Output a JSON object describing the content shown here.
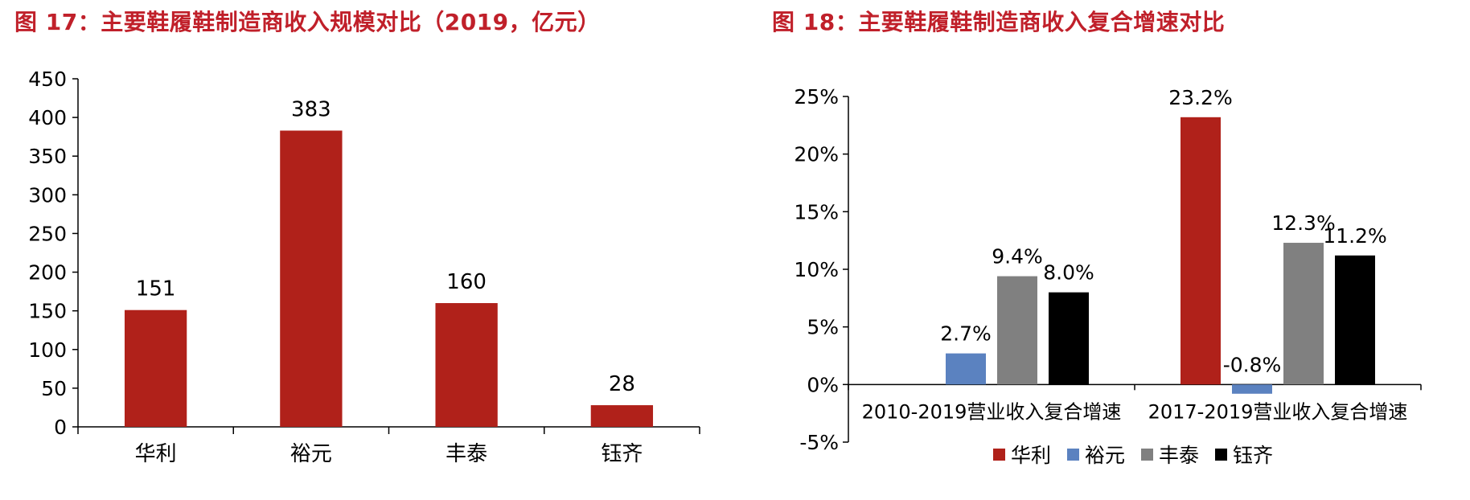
{
  "figures": [
    {
      "title": "图 17：主要鞋履鞋制造商收入规模对比（2019，亿元）"
    },
    {
      "title": "图 18：主要鞋履鞋制造商收入复合增速对比"
    }
  ],
  "colors": {
    "huali": "#b0211a",
    "yuyuan": "#5b82c0",
    "fengtai": "#808080",
    "yuqi": "#000000"
  },
  "chart_data": [
    {
      "type": "bar",
      "title": "图 17：主要鞋履鞋制造商收入规模对比（2019，亿元）",
      "categories": [
        "华利",
        "裕元",
        "丰泰",
        "钰齐"
      ],
      "values": [
        151,
        383,
        160,
        28
      ],
      "value_labels": [
        "151",
        "383",
        "160",
        "28"
      ],
      "ylim": [
        0,
        450
      ],
      "yticks": [
        0,
        50,
        100,
        150,
        200,
        250,
        300,
        350,
        400,
        450
      ],
      "ytick_labels": [
        "0",
        "50",
        "100",
        "150",
        "200",
        "250",
        "300",
        "350",
        "400",
        "450"
      ],
      "xlabel": "",
      "ylabel": "",
      "grid": false,
      "legend": false
    },
    {
      "type": "bar",
      "title": "图 18：主要鞋履鞋制造商收入复合增速对比",
      "categories": [
        "2010-2019营业收入复合增速",
        "2017-2019营业收入复合增速"
      ],
      "series": [
        {
          "name": "华利",
          "values": [
            null,
            23.2
          ],
          "labels": [
            "",
            "23.2%"
          ]
        },
        {
          "name": "裕元",
          "values": [
            2.7,
            -0.8
          ],
          "labels": [
            "2.7%",
            "-0.8%"
          ]
        },
        {
          "name": "丰泰",
          "values": [
            9.4,
            12.3
          ],
          "labels": [
            "9.4%",
            "12.3%"
          ]
        },
        {
          "name": "钰齐",
          "values": [
            8.0,
            11.2
          ],
          "labels": [
            "8.0%",
            "11.2%"
          ]
        }
      ],
      "ylim": [
        -5,
        25
      ],
      "yticks": [
        -5,
        0,
        5,
        10,
        15,
        20,
        25
      ],
      "ytick_labels": [
        "-5%",
        "0%",
        "5%",
        "10%",
        "15%",
        "20%",
        "25%"
      ],
      "xlabel": "",
      "ylabel": "",
      "grid": false,
      "legend": "bottom-center"
    }
  ]
}
